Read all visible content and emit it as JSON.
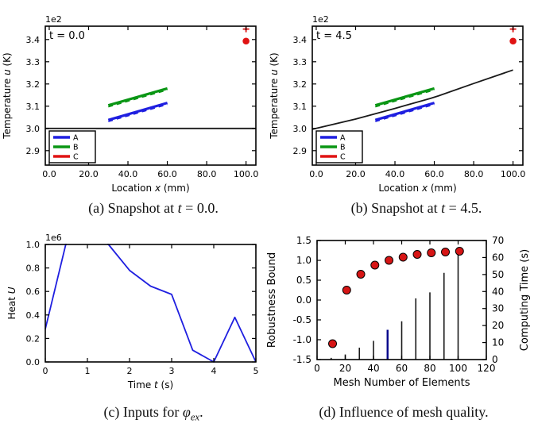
{
  "figure": {
    "background": "#ffffff"
  },
  "colors": {
    "A": "#1f1fe0",
    "B": "#0a9614",
    "C": "#e01313",
    "black": "#1a1a1a",
    "navy": "#00008b",
    "dot_red": "#d61515",
    "spine": "#000000"
  },
  "captions": [
    {
      "id": "a",
      "segments": [
        {
          "t": "(a) Snapshot at "
        },
        {
          "t": "t",
          "i": 1
        },
        {
          "t": " = 0.0."
        }
      ]
    },
    {
      "id": "b",
      "segments": [
        {
          "t": "(b) Snapshot at "
        },
        {
          "t": "t",
          "i": 1
        },
        {
          "t": " = 4.5."
        }
      ]
    },
    {
      "id": "c",
      "segments": [
        {
          "t": "(c) Inputs for "
        },
        {
          "t": "φ",
          "i": 1
        },
        {
          "t": "ex",
          "i": 1,
          "sub": 1
        },
        {
          "t": "."
        }
      ]
    },
    {
      "id": "d",
      "segments": [
        {
          "t": "(d) Influence of mesh quality."
        }
      ]
    }
  ],
  "chart_data": [
    {
      "id": "a",
      "type": "line",
      "annotation": "t = 0.0",
      "offset_text": "1e2",
      "xlabel": [
        {
          "t": "Location "
        },
        {
          "t": "x",
          "i": 1
        },
        {
          "t": " (mm)"
        }
      ],
      "ylabel": [
        {
          "t": "Temperature "
        },
        {
          "t": "u",
          "i": 1
        },
        {
          "t": " (K)"
        }
      ],
      "xlim": [
        -2,
        105
      ],
      "ylim": [
        283.5,
        346
      ],
      "xticks": [
        0,
        20,
        40,
        60,
        80,
        100
      ],
      "xtick_labels": [
        "0.0",
        "20.0",
        "40.0",
        "60.0",
        "80.0",
        "100.0"
      ],
      "yticks": [
        290,
        300,
        310,
        320,
        330,
        340
      ],
      "ytick_labels": [
        "2.9",
        "3.0",
        "3.1",
        "3.2",
        "3.3",
        "3.4"
      ],
      "legend": [
        {
          "label": "A",
          "color": "A"
        },
        {
          "label": "B",
          "color": "B"
        },
        {
          "label": "C",
          "color": "C"
        }
      ],
      "series": [
        {
          "name": "baseline",
          "color": "black",
          "style": "solid",
          "width": 1.8,
          "points": [
            [
              -2,
              300
            ],
            [
              105,
              300
            ]
          ]
        },
        {
          "name": "A-dashed",
          "color": "A",
          "style": "dashed",
          "width": 1.6,
          "points": [
            [
              30,
              303.1
            ],
            [
              60,
              310.8
            ]
          ]
        },
        {
          "name": "A-solid",
          "color": "A",
          "style": "solid",
          "width": 3.2,
          "points": [
            [
              30,
              303.8
            ],
            [
              60,
              311.5
            ]
          ]
        },
        {
          "name": "B-dashed",
          "color": "B",
          "style": "dashed",
          "width": 1.6,
          "points": [
            [
              30,
              309.7
            ],
            [
              60,
              317.3
            ]
          ]
        },
        {
          "name": "B-solid",
          "color": "B",
          "style": "solid",
          "width": 3.2,
          "points": [
            [
              30,
              310.4
            ],
            [
              60,
              318.0
            ]
          ]
        },
        {
          "name": "C-dot",
          "color": "C",
          "style": "marker-circle",
          "size": 4.3,
          "points": [
            [
              100,
              339.3
            ]
          ]
        },
        {
          "name": "C-plus",
          "color": "C",
          "style": "marker-plus",
          "size": 4,
          "points": [
            [
              100,
              344.7
            ]
          ]
        }
      ]
    },
    {
      "id": "b",
      "type": "line",
      "annotation": "t = 4.5",
      "offset_text": "1e2",
      "xlabel": [
        {
          "t": "Location "
        },
        {
          "t": "x",
          "i": 1
        },
        {
          "t": " (mm)"
        }
      ],
      "ylabel": [
        {
          "t": "Temperature "
        },
        {
          "t": "u",
          "i": 1
        },
        {
          "t": " (K)"
        }
      ],
      "xlim": [
        -2,
        105
      ],
      "ylim": [
        283.5,
        346
      ],
      "xticks": [
        0,
        20,
        40,
        60,
        80,
        100
      ],
      "xtick_labels": [
        "0.0",
        "20.0",
        "40.0",
        "60.0",
        "80.0",
        "100.0"
      ],
      "yticks": [
        290,
        300,
        310,
        320,
        330,
        340
      ],
      "ytick_labels": [
        "2.9",
        "3.0",
        "3.1",
        "3.2",
        "3.3",
        "3.4"
      ],
      "legend": [
        {
          "label": "A",
          "color": "A"
        },
        {
          "label": "B",
          "color": "B"
        },
        {
          "label": "C",
          "color": "C"
        }
      ],
      "series": [
        {
          "name": "baseline",
          "color": "black",
          "style": "solid",
          "width": 1.8,
          "points": [
            [
              -2,
              299.6
            ],
            [
              20,
              304.2
            ],
            [
              40,
              309.0
            ],
            [
              58,
              313.5
            ],
            [
              62,
              314.6
            ],
            [
              80,
              320.2
            ],
            [
              100,
              326.3
            ]
          ]
        },
        {
          "name": "A-dashed",
          "color": "A",
          "style": "dashed",
          "width": 1.6,
          "points": [
            [
              30,
              303.1
            ],
            [
              60,
              310.8
            ]
          ]
        },
        {
          "name": "A-solid",
          "color": "A",
          "style": "solid",
          "width": 3.2,
          "points": [
            [
              30,
              303.8
            ],
            [
              60,
              311.5
            ]
          ]
        },
        {
          "name": "B-dashed",
          "color": "B",
          "style": "dashed",
          "width": 1.6,
          "points": [
            [
              30,
              309.7
            ],
            [
              60,
              317.3
            ]
          ]
        },
        {
          "name": "B-solid",
          "color": "B",
          "style": "solid",
          "width": 3.2,
          "points": [
            [
              30,
              310.4
            ],
            [
              60,
              318.0
            ]
          ]
        },
        {
          "name": "C-dot",
          "color": "C",
          "style": "marker-circle",
          "size": 4.3,
          "points": [
            [
              100,
              339.3
            ]
          ]
        },
        {
          "name": "C-plus",
          "color": "C",
          "style": "marker-plus",
          "size": 4,
          "points": [
            [
              100,
              344.7
            ]
          ]
        }
      ]
    },
    {
      "id": "c",
      "type": "line",
      "offset_text": "1e6",
      "xlabel": [
        {
          "t": "Time "
        },
        {
          "t": "t",
          "i": 1
        },
        {
          "t": " (s)"
        }
      ],
      "ylabel": [
        {
          "t": "Heat "
        },
        {
          "t": "U",
          "i": 1
        }
      ],
      "xlim": [
        0,
        5
      ],
      "ylim": [
        0,
        1
      ],
      "xticks": [
        0,
        1,
        2,
        3,
        4,
        5
      ],
      "xtick_labels": [
        "0",
        "1",
        "2",
        "3",
        "4",
        "5"
      ],
      "yticks": [
        0,
        0.2,
        0.4,
        0.6,
        0.8,
        1.0
      ],
      "ytick_labels": [
        "0.0",
        "0.2",
        "0.4",
        "0.6",
        "0.8",
        "1.0"
      ],
      "units_note": "Heat values in 1e6",
      "series": [
        {
          "name": "heat-input",
          "color": "A",
          "style": "solid",
          "width": 1.8,
          "points": [
            [
              0,
              0.28
            ],
            [
              0.5,
              1.02
            ],
            [
              1,
              1.35
            ],
            [
              1.5,
              1.0
            ],
            [
              2,
              0.78
            ],
            [
              2.5,
              0.645
            ],
            [
              3,
              0.575
            ],
            [
              3.5,
              0.1
            ],
            [
              4,
              0
            ],
            [
              4.5,
              0.38
            ],
            [
              5,
              0
            ]
          ]
        }
      ]
    },
    {
      "id": "d",
      "type": "scatter+stem",
      "xlabel": [
        {
          "t": "Mesh Number of Elements"
        }
      ],
      "ylabel": [
        {
          "t": "Robustness Bound"
        }
      ],
      "ylabel2": [
        {
          "t": "Computing Time (s)"
        }
      ],
      "xlim": [
        0,
        120
      ],
      "ylim": [
        -1.5,
        1.5
      ],
      "ylim2": [
        0,
        70
      ],
      "xticks": [
        0,
        20,
        40,
        60,
        80,
        100,
        120
      ],
      "xtick_labels": [
        "0",
        "20",
        "40",
        "60",
        "80",
        "100",
        "120"
      ],
      "yticks": [
        -1.5,
        -1.0,
        -0.5,
        0.0,
        0.5,
        1.0,
        1.5
      ],
      "ytick_labels": [
        "-1.5",
        "-1.0",
        "-0.5",
        "0.0",
        "0.5",
        "1.0",
        "1.5"
      ],
      "yticks2": [
        0,
        10,
        20,
        30,
        40,
        50,
        60,
        70
      ],
      "ytick2_labels": [
        "0",
        "10",
        "20",
        "30",
        "40",
        "50",
        "60",
        "70"
      ],
      "series": [
        {
          "name": "computing-time-stems",
          "axis": "right",
          "style": "stem",
          "color": "black",
          "width": 1.6,
          "highlight": {
            "x": 50,
            "color": "navy",
            "width": 2.4
          },
          "points": [
            [
              10,
              1
            ],
            [
              20,
              3
            ],
            [
              30,
              7
            ],
            [
              40,
              11
            ],
            [
              50,
              17.5
            ],
            [
              60,
              22.5
            ],
            [
              70,
              36
            ],
            [
              80,
              39.5
            ],
            [
              90,
              51
            ],
            [
              100,
              63.5
            ]
          ]
        },
        {
          "name": "robustness-bound-dots",
          "axis": "left",
          "style": "marker-circle",
          "color": "dot_red",
          "edge": "#000000",
          "size": 5,
          "points": [
            [
              11,
              -1.1
            ],
            [
              21,
              0.25
            ],
            [
              31,
              0.65
            ],
            [
              41,
              0.88
            ],
            [
              51,
              1.0
            ],
            [
              61,
              1.08
            ],
            [
              71,
              1.15
            ],
            [
              81,
              1.19
            ],
            [
              91,
              1.21
            ],
            [
              101,
              1.23
            ]
          ]
        }
      ]
    }
  ]
}
